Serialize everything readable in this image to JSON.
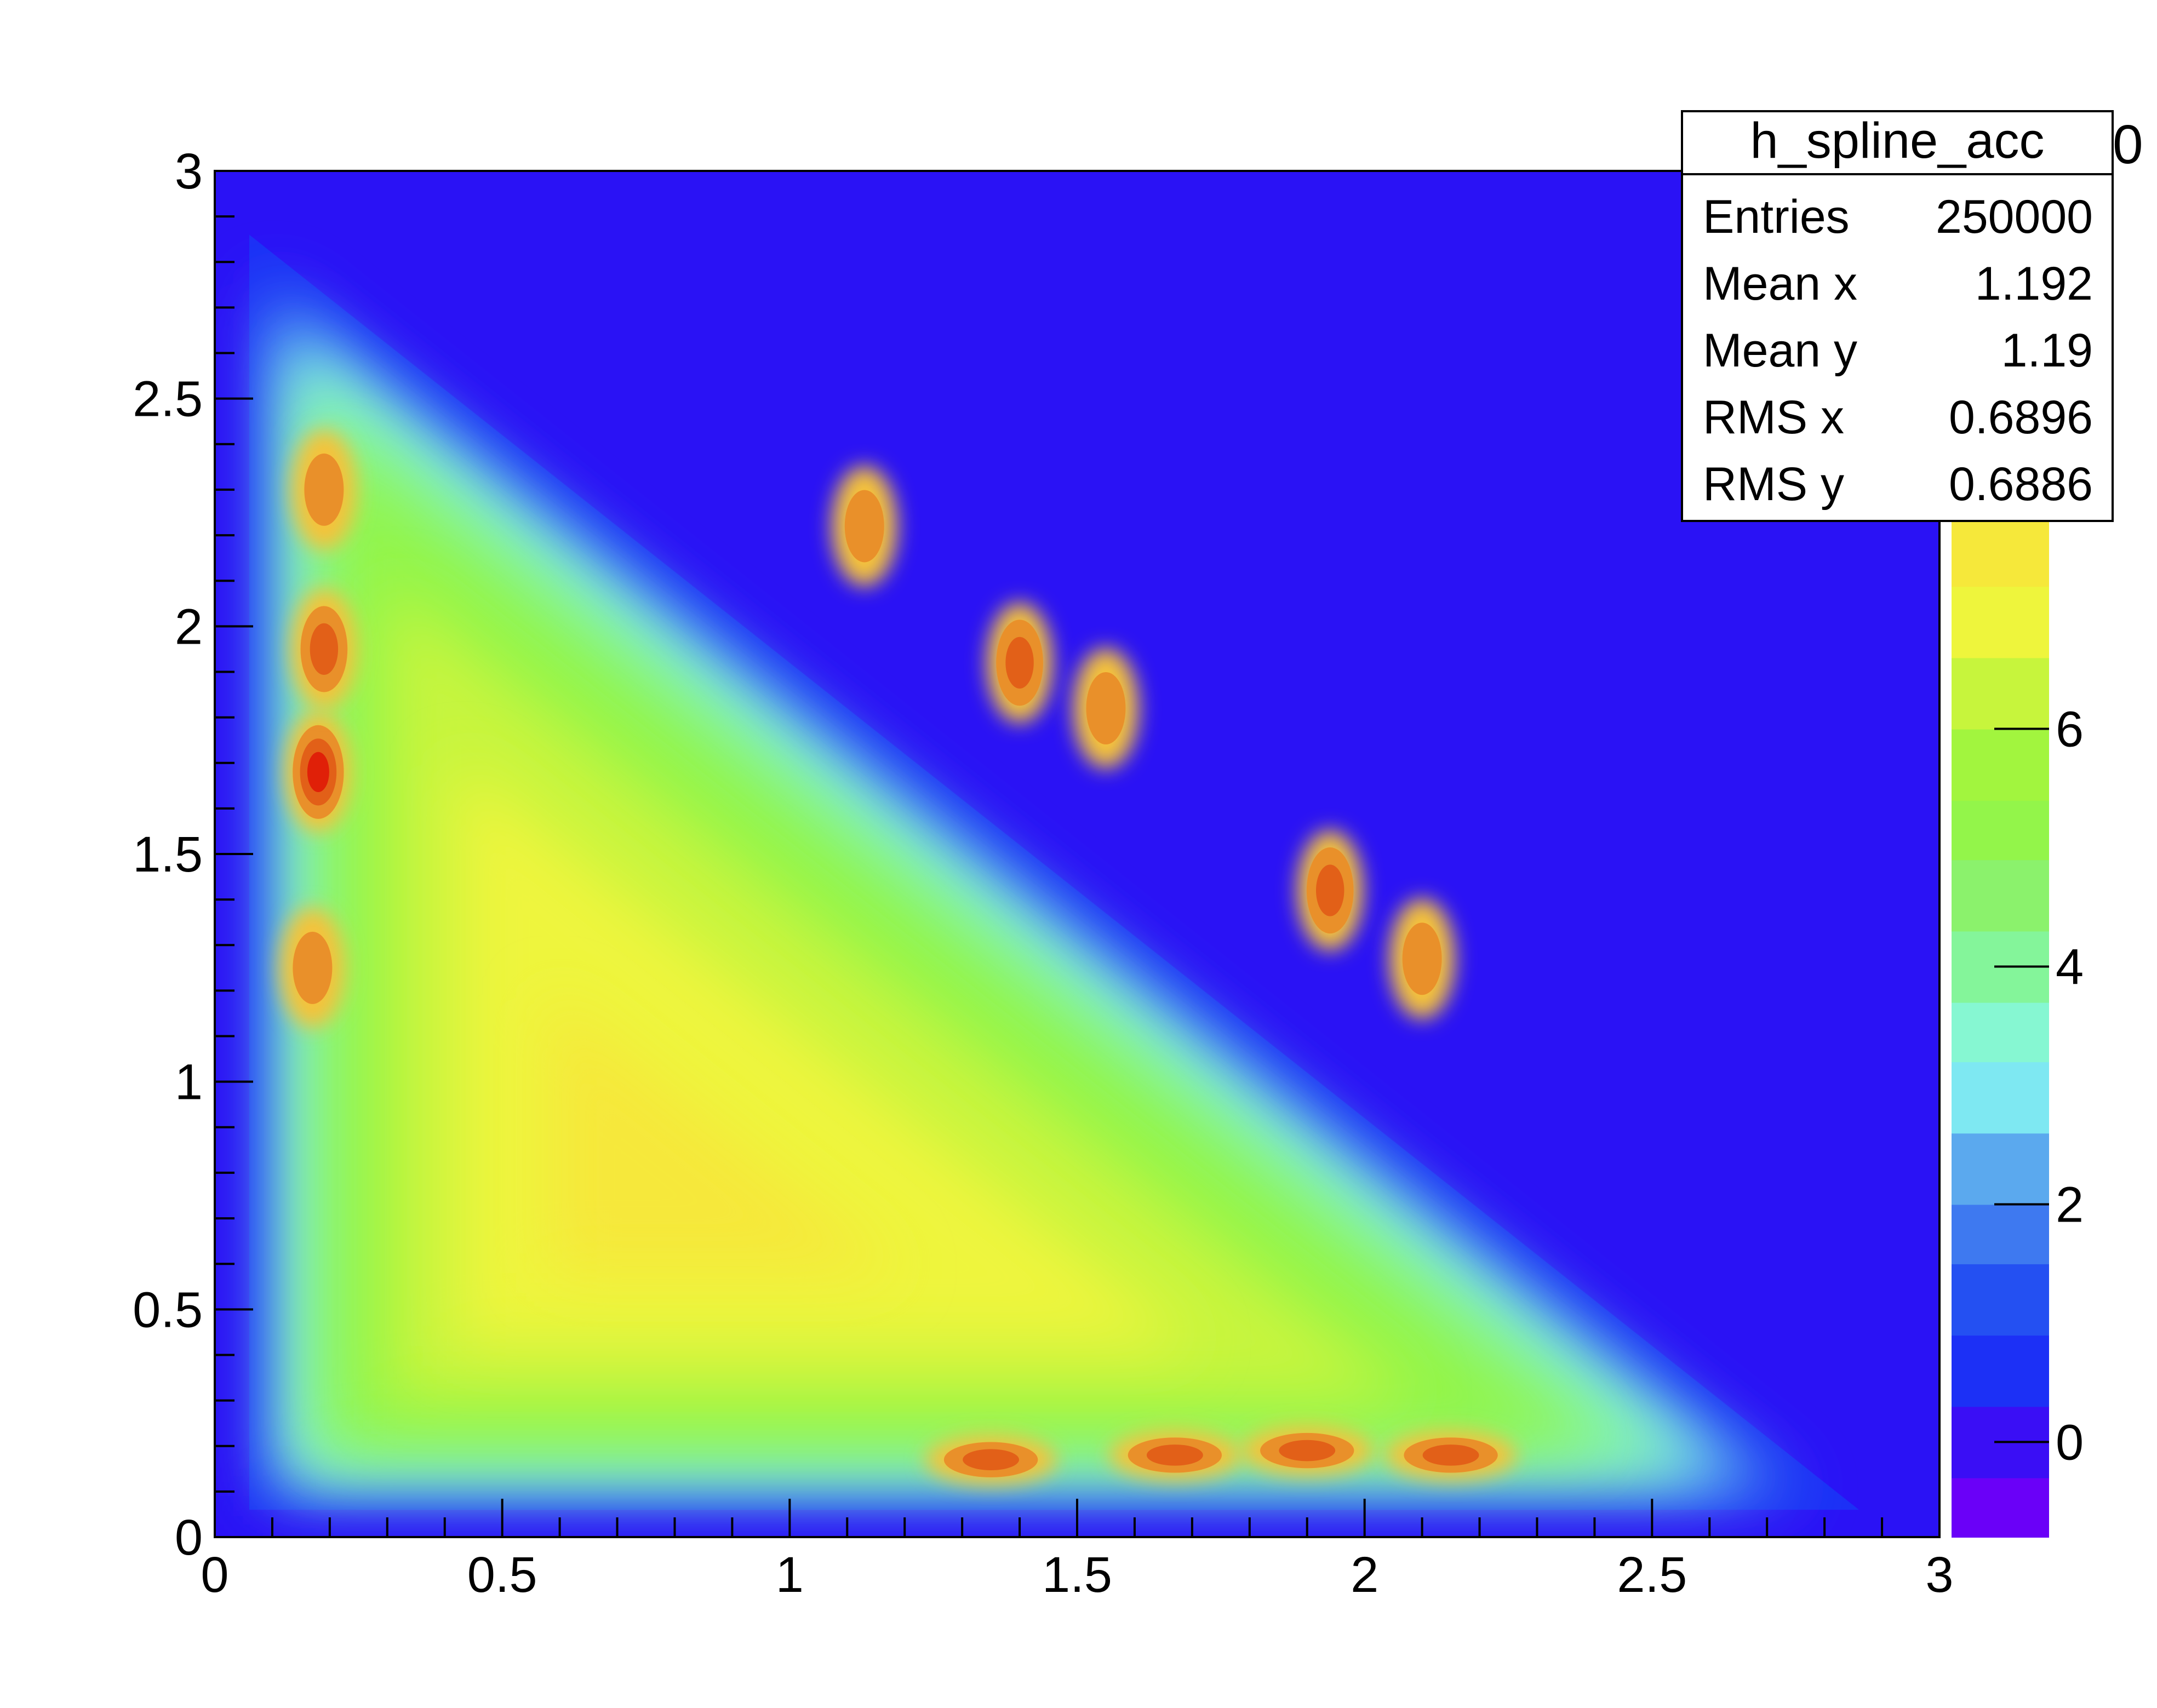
{
  "chart_data": {
    "type": "heatmap",
    "title": "",
    "xlabel": "",
    "ylabel": "",
    "xlim": [
      0,
      3
    ],
    "ylim": [
      0,
      3
    ],
    "x_ticks": [
      "0",
      "0.5",
      "1",
      "1.5",
      "2",
      "2.5",
      "3"
    ],
    "y_ticks": [
      "0",
      "0.5",
      "1",
      "1.5",
      "2",
      "2.5",
      "3"
    ],
    "colorbar": {
      "zlim": [
        -0.8,
        7.8
      ],
      "ticks": [
        "0",
        "2",
        "4",
        "6"
      ],
      "exponent_label_fragment": "0",
      "levels": [
        {
          "from": -0.8,
          "to": -0.3,
          "color": "#6a00f8"
        },
        {
          "from": -0.3,
          "to": 0.3,
          "color": "#3a0ef5"
        },
        {
          "from": 0.3,
          "to": 0.9,
          "color": "#1c30f6"
        },
        {
          "from": 0.9,
          "to": 1.5,
          "color": "#2450f2"
        },
        {
          "from": 1.5,
          "to": 2.0,
          "color": "#3e79f0"
        },
        {
          "from": 2.0,
          "to": 2.6,
          "color": "#5ba9ee"
        },
        {
          "from": 2.6,
          "to": 3.2,
          "color": "#7ee8f2"
        },
        {
          "from": 3.2,
          "to": 3.7,
          "color": "#86f7d2"
        },
        {
          "from": 3.7,
          "to": 4.3,
          "color": "#84f59a"
        },
        {
          "from": 4.3,
          "to": 4.9,
          "color": "#8bf26c"
        },
        {
          "from": 4.9,
          "to": 5.4,
          "color": "#93f54a"
        },
        {
          "from": 5.4,
          "to": 6.0,
          "color": "#a2f53e"
        },
        {
          "from": 6.0,
          "to": 6.6,
          "color": "#c7f53c"
        },
        {
          "from": 6.6,
          "to": 7.2,
          "color": "#eef53c"
        },
        {
          "from": 7.2,
          "to": 7.8,
          "color": "#f6e83a"
        }
      ],
      "high_colors": [
        "#f5c23a",
        "#e9902a",
        "#e26018",
        "#e02008"
      ]
    },
    "background_color": "#2a12f5",
    "description_region": "Triangular acceptance region bounded by x>0.05, y>0.05, x+y<2.95",
    "hotspots": [
      {
        "x": 0.18,
        "y": 1.68,
        "level": "peak"
      },
      {
        "x": 0.19,
        "y": 1.95,
        "level": "high"
      },
      {
        "x": 0.19,
        "y": 2.3,
        "level": "elevated"
      },
      {
        "x": 0.17,
        "y": 1.25,
        "level": "elevated"
      },
      {
        "x": 1.13,
        "y": 2.22,
        "level": "elevated"
      },
      {
        "x": 1.4,
        "y": 1.92,
        "level": "high"
      },
      {
        "x": 1.55,
        "y": 1.82,
        "level": "elevated"
      },
      {
        "x": 1.94,
        "y": 1.42,
        "level": "high"
      },
      {
        "x": 2.1,
        "y": 1.27,
        "level": "elevated"
      },
      {
        "x": 1.35,
        "y": 0.17,
        "level": "high"
      },
      {
        "x": 1.67,
        "y": 0.18,
        "level": "high"
      },
      {
        "x": 1.9,
        "y": 0.19,
        "level": "high"
      },
      {
        "x": 2.15,
        "y": 0.18,
        "level": "high"
      }
    ]
  },
  "stats_box": {
    "name": "h_spline_acc",
    "rows": [
      {
        "label": "Entries",
        "value": "250000"
      },
      {
        "label": "Mean x",
        "value": "1.192"
      },
      {
        "label": "Mean y",
        "value": "1.19"
      },
      {
        "label": "RMS x",
        "value": "0.6896"
      },
      {
        "label": "RMS y",
        "value": "0.6886"
      }
    ]
  }
}
